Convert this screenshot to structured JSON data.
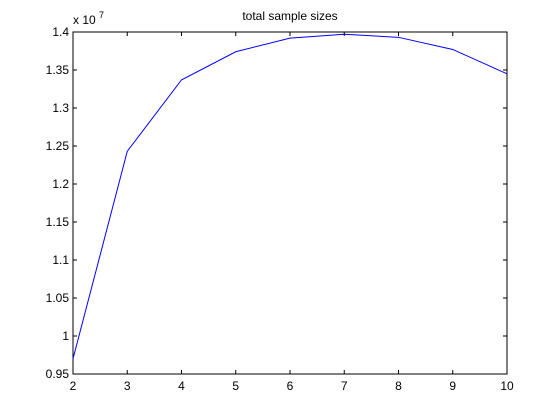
{
  "chart_data": {
    "type": "line",
    "title": "total sample sizes",
    "xlabel": "",
    "ylabel": "",
    "y_multiplier_label": {
      "base": "x 10",
      "exponent": "7"
    },
    "x": [
      2,
      3,
      4,
      5,
      6,
      7,
      8,
      9,
      10
    ],
    "series": [
      {
        "values": [
          0.97,
          1.243,
          1.337,
          1.374,
          1.392,
          1.397,
          1.393,
          1.377,
          1.345
        ],
        "color": "#0000ff"
      }
    ],
    "xlim": [
      2,
      10
    ],
    "ylim": [
      0.95,
      1.4
    ],
    "xticks": [
      2,
      3,
      4,
      5,
      6,
      7,
      8,
      9,
      10
    ],
    "xtick_labels": [
      "2",
      "3",
      "4",
      "5",
      "6",
      "7",
      "8",
      "9",
      "10"
    ],
    "yticks": [
      0.95,
      1.0,
      1.05,
      1.1,
      1.15,
      1.2,
      1.25,
      1.3,
      1.35,
      1.4
    ],
    "ytick_labels": [
      "0.95",
      "1",
      "1.05",
      "1.1",
      "1.15",
      "1.2",
      "1.25",
      "1.3",
      "1.35",
      "1.4"
    ],
    "grid": false,
    "legend": "none"
  }
}
